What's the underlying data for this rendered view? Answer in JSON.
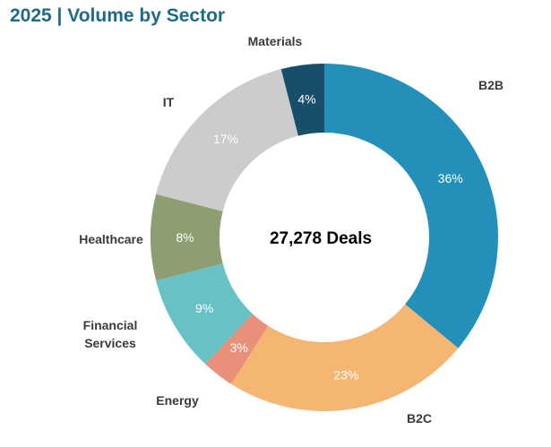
{
  "chart_data": {
    "type": "pie",
    "variant": "donut",
    "title": "2025 | Volume by Sector",
    "center_label": "27,278 Deals",
    "unit": "%",
    "categories": [
      "B2B",
      "B2C",
      "Energy",
      "Financial Services",
      "Healthcare",
      "IT",
      "Materials"
    ],
    "values": [
      36,
      23,
      3,
      9,
      8,
      17,
      4
    ],
    "value_labels": [
      "36%",
      "23%",
      "3%",
      "9%",
      "8%",
      "17%",
      "4%"
    ],
    "colors": [
      "#2290b8",
      "#f5b573",
      "#e8907a",
      "#67c1c5",
      "#8e9e72",
      "#cccccc",
      "#174f6b"
    ],
    "start": "top",
    "direction": "clockwise",
    "legend": "none"
  }
}
